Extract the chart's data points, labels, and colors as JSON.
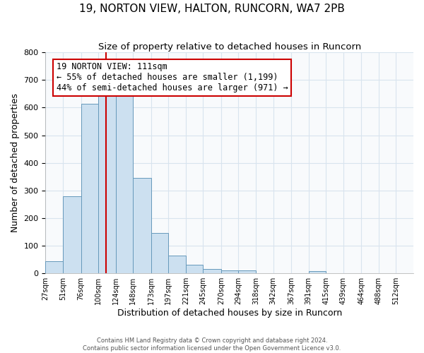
{
  "title": "19, NORTON VIEW, HALTON, RUNCORN, WA7 2PB",
  "subtitle": "Size of property relative to detached houses in Runcorn",
  "xlabel": "Distribution of detached houses by size in Runcorn",
  "ylabel": "Number of detached properties",
  "bin_labels": [
    "27sqm",
    "51sqm",
    "76sqm",
    "100sqm",
    "124sqm",
    "148sqm",
    "173sqm",
    "197sqm",
    "221sqm",
    "245sqm",
    "270sqm",
    "294sqm",
    "318sqm",
    "342sqm",
    "367sqm",
    "391sqm",
    "415sqm",
    "439sqm",
    "464sqm",
    "488sqm",
    "512sqm"
  ],
  "bin_edges": [
    27,
    51,
    76,
    100,
    124,
    148,
    173,
    197,
    221,
    245,
    270,
    294,
    318,
    342,
    367,
    391,
    415,
    439,
    464,
    488,
    512
  ],
  "bar_heights": [
    45,
    280,
    615,
    663,
    663,
    345,
    147,
    65,
    30,
    15,
    10,
    10,
    0,
    0,
    0,
    8,
    0,
    0,
    0,
    0
  ],
  "bar_facecolor": "#cce0f0",
  "bar_edgecolor": "#6699bb",
  "vline_x": 111,
  "vline_color": "#cc0000",
  "annotation_box_text": "19 NORTON VIEW: 111sqm\n← 55% of detached houses are smaller (1,199)\n44% of semi-detached houses are larger (971) →",
  "annotation_box_facecolor": "#ffffff",
  "annotation_box_edgecolor": "#cc0000",
  "ylim": [
    0,
    800
  ],
  "yticks": [
    0,
    100,
    200,
    300,
    400,
    500,
    600,
    700,
    800
  ],
  "background_color": "#ffffff",
  "plot_bg_color": "#f8fafc",
  "grid_color": "#d8e4ee",
  "footer_line1": "Contains HM Land Registry data © Crown copyright and database right 2024.",
  "footer_line2": "Contains public sector information licensed under the Open Government Licence v3.0.",
  "title_fontsize": 11,
  "subtitle_fontsize": 9.5,
  "xlabel_fontsize": 9,
  "ylabel_fontsize": 9,
  "annot_fontsize": 8.5
}
